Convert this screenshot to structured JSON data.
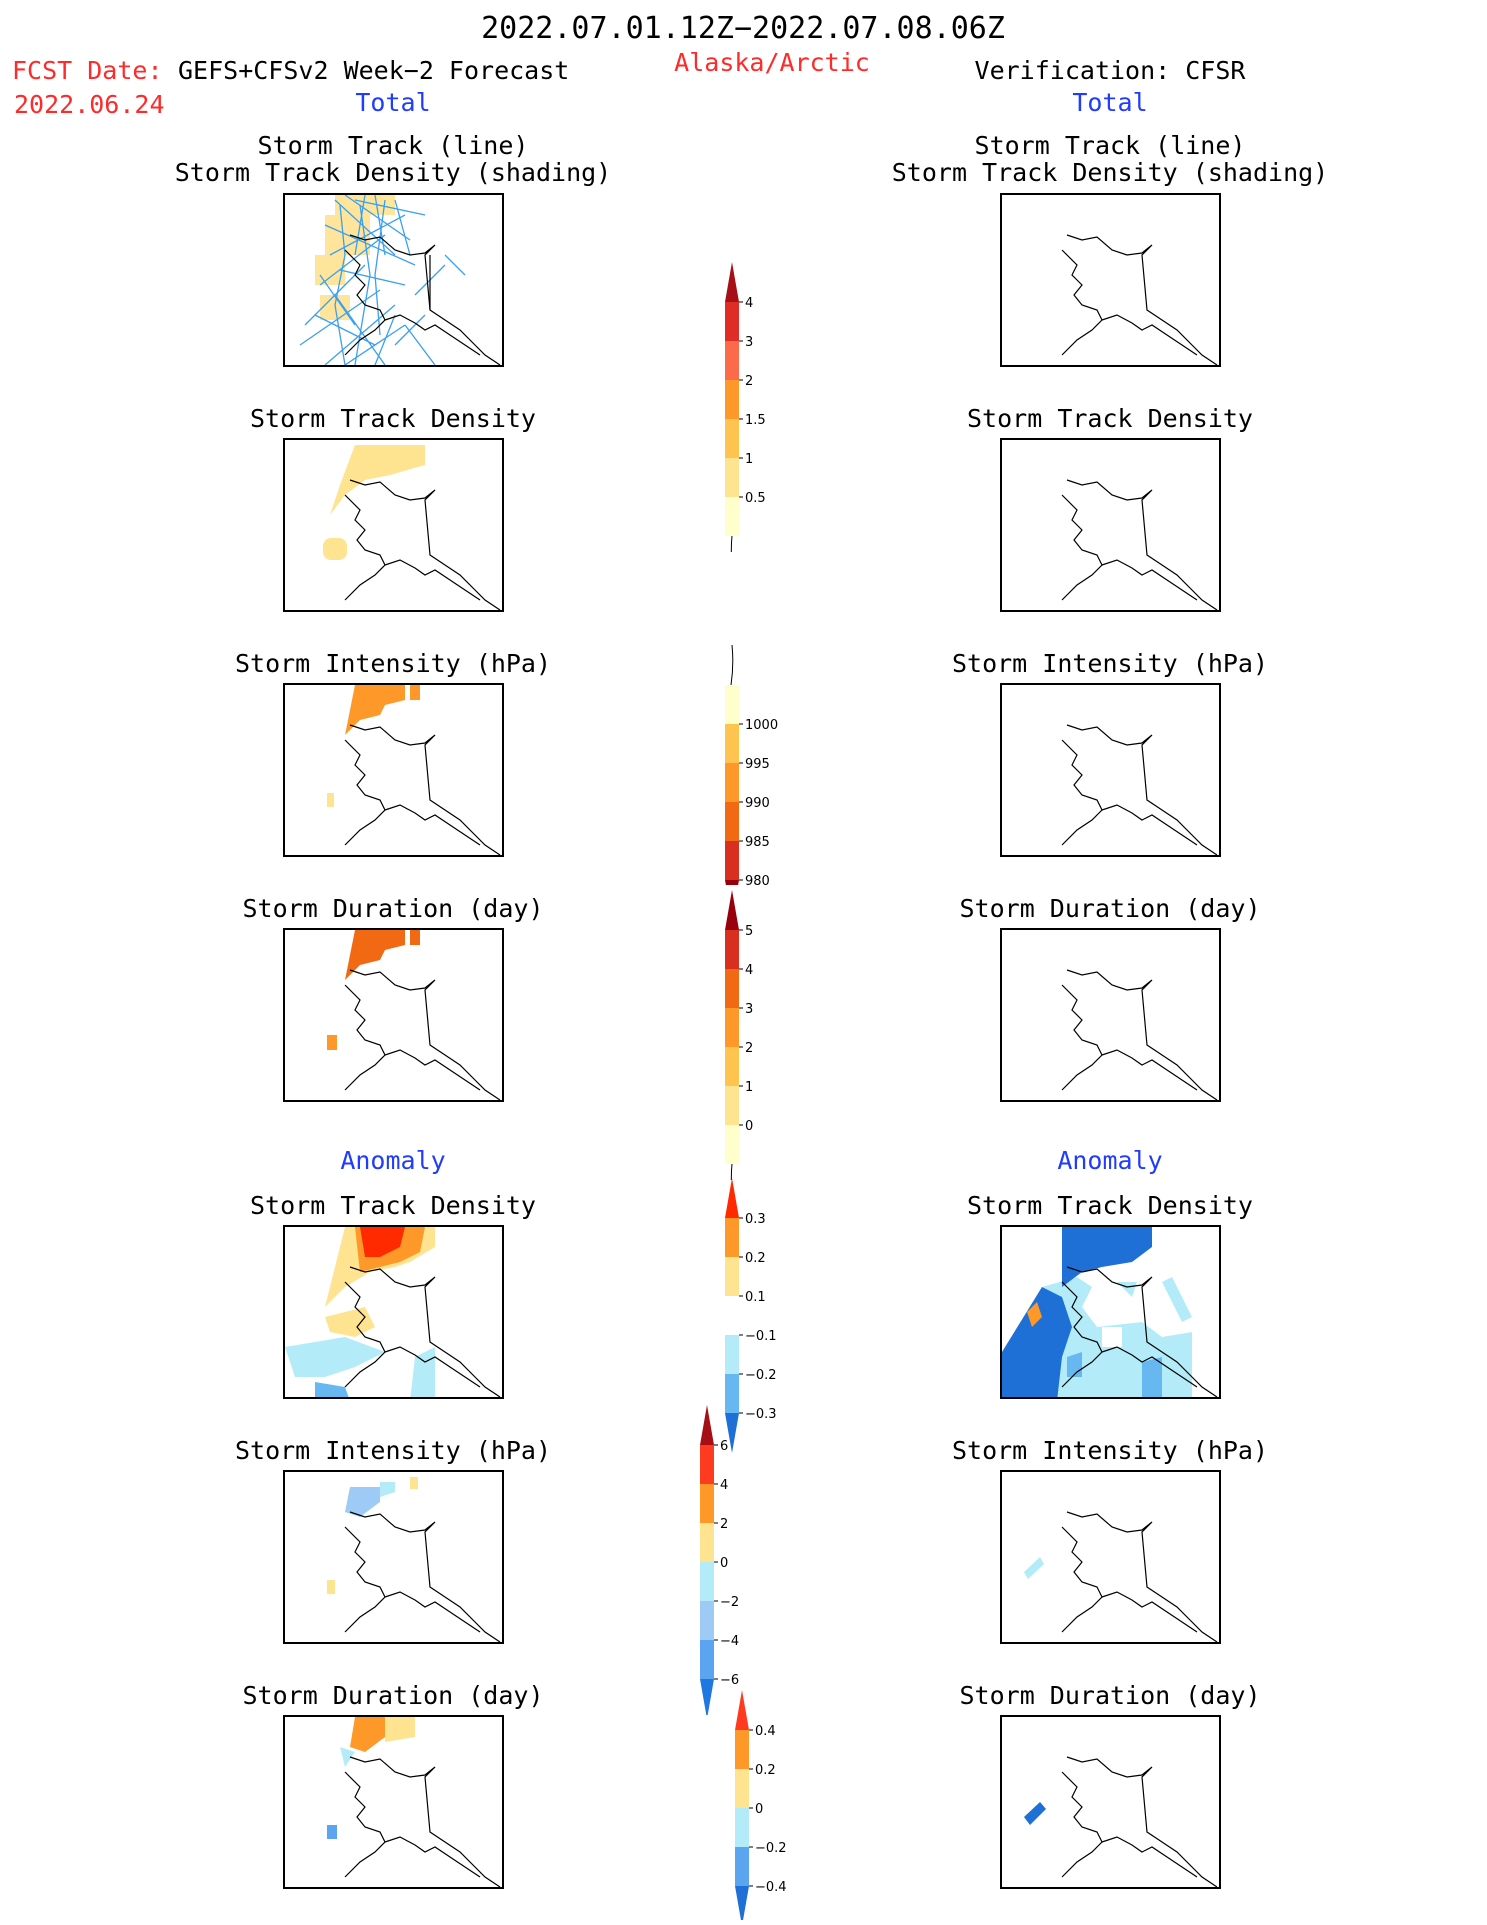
{
  "header": {
    "period": "2022.07.01.12Z−2022.07.08.06Z",
    "fcst_date_label": "FCST Date:",
    "model": "GEFS+CFSv2 Week−2 Forecast",
    "fcst_date": "2022.06.24",
    "region": "Alaska/Arctic",
    "verification": "Verification: CFSR"
  },
  "sections": {
    "total_label": "Total",
    "anomaly_label": "Anomaly"
  },
  "panels": {
    "track_line": "Storm Track (line)",
    "track_density_shading": "Storm Track Density (shading)",
    "track_density": "Storm Track Density",
    "intensity": "Storm Intensity (hPa)",
    "duration": "Storm Duration (day)"
  },
  "colorbars": {
    "total_density": {
      "labels": [
        "4",
        "3",
        "2",
        "1.5",
        "1",
        "0.5"
      ],
      "colors": [
        "#a50f15",
        "#de2d26",
        "#fb6a4a",
        "#fe9929",
        "#fec44f",
        "#fee391",
        "#ffffcc"
      ]
    },
    "total_intensity": {
      "labels": [
        "1000",
        "995",
        "990",
        "985",
        "980"
      ],
      "colors": [
        "#ffffcc",
        "#fec44f",
        "#fe9929",
        "#f16913",
        "#d7301f",
        "#99000d"
      ]
    },
    "total_duration": {
      "labels": [
        "5",
        "4",
        "3",
        "2",
        "1",
        "0"
      ],
      "colors": [
        "#99000d",
        "#d7301f",
        "#f16913",
        "#fe9929",
        "#fec44f",
        "#fee391",
        "#ffffcc"
      ]
    },
    "anom_density": {
      "labels": [
        "0.3",
        "0.2",
        "0.1",
        "−0.1",
        "−0.2",
        "−0.3"
      ],
      "colors": [
        "#ff2a00",
        "#fe9929",
        "#fee391",
        "#ffffff",
        "#b3ecf8",
        "#67b8f0",
        "#1e6fd6"
      ]
    },
    "anom_intensity": {
      "labels": [
        "6",
        "4",
        "2",
        "0",
        "−2",
        "−4",
        "−6"
      ],
      "colors": [
        "#a50f15",
        "#ff3b1f",
        "#fe9929",
        "#fee391",
        "#b3ecf8",
        "#9ecbf5",
        "#5aa4f0",
        "#1f78e0"
      ]
    },
    "anom_duration": {
      "labels": [
        "0.4",
        "0.2",
        "0",
        "−0.2",
        "−0.4"
      ],
      "colors": [
        "#ff3b1f",
        "#fe9929",
        "#fee391",
        "#b3ecf8",
        "#5aa4f0",
        "#1e6fd6"
      ]
    }
  },
  "colors": {
    "forecast_red": "#ff2a2a",
    "label_blue": "#1f3cff",
    "track_line": "#3aa0f0"
  }
}
